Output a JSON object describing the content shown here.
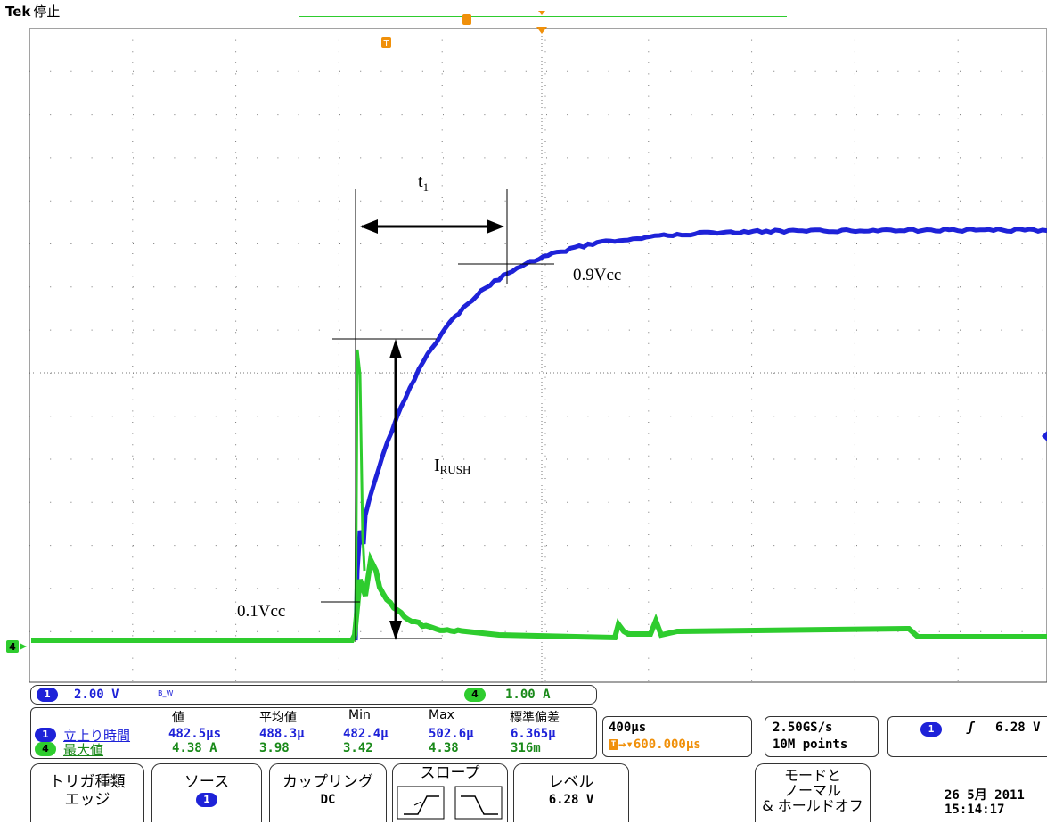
{
  "header": {
    "brand": "Tek",
    "status": "停止"
  },
  "annotations": {
    "t1_main": "t",
    "t1_sub": "1",
    "irush_main": "I",
    "irush_sub": "RUSH",
    "v09": "0.9Vcc",
    "v01": "0.1Vcc"
  },
  "markers": {
    "trigger_pos": "T",
    "ground_ch4": "4"
  },
  "channels": {
    "ch1": {
      "badge": "1",
      "scale": "2.00 V",
      "bw": "B_W",
      "color": "#1e22d8"
    },
    "ch4": {
      "badge": "4",
      "scale": "1.00 A",
      "color": "#2ecc2e"
    }
  },
  "measurements": {
    "headers": [
      "値",
      "平均値",
      "Min",
      "Max",
      "標準偏差"
    ],
    "rows": [
      {
        "badge": "1",
        "name": "立上り時間",
        "values": [
          "482.5µs",
          "488.3µ",
          "482.4µ",
          "502.6µ",
          "6.365µ"
        ]
      },
      {
        "badge": "4",
        "name": "最大値",
        "values": [
          "4.38 A",
          "3.98",
          "3.42",
          "4.38",
          "316m"
        ]
      }
    ]
  },
  "timebase": {
    "scale": "400µs",
    "trigger_icon": "T",
    "position": "600.000µs"
  },
  "acquisition": {
    "rate": "2.50GS/s",
    "points": "10M points"
  },
  "trigger": {
    "badge": "1",
    "slope": "ʃ",
    "level": "6.28 V"
  },
  "menu": {
    "type_line1": "トリガ種類",
    "type_line2": "エッジ",
    "source_line1": "ソース",
    "source_badge": "1",
    "coupling_line1": "カップリング",
    "coupling_line2": "DC",
    "slope_line1": "スロープ",
    "level_line1": "レベル",
    "level_line2": "6.28 V",
    "mode_line1": "モードと",
    "mode_line2": "ノーマル",
    "mode_line3": "& ホールドオフ"
  },
  "datetime": {
    "date": "26 5月 2011",
    "time": "15:14:17"
  },
  "colors": {
    "ch1": "#1e22d8",
    "ch4": "#2ecc2e",
    "trigger_marker": "#f0900a"
  }
}
